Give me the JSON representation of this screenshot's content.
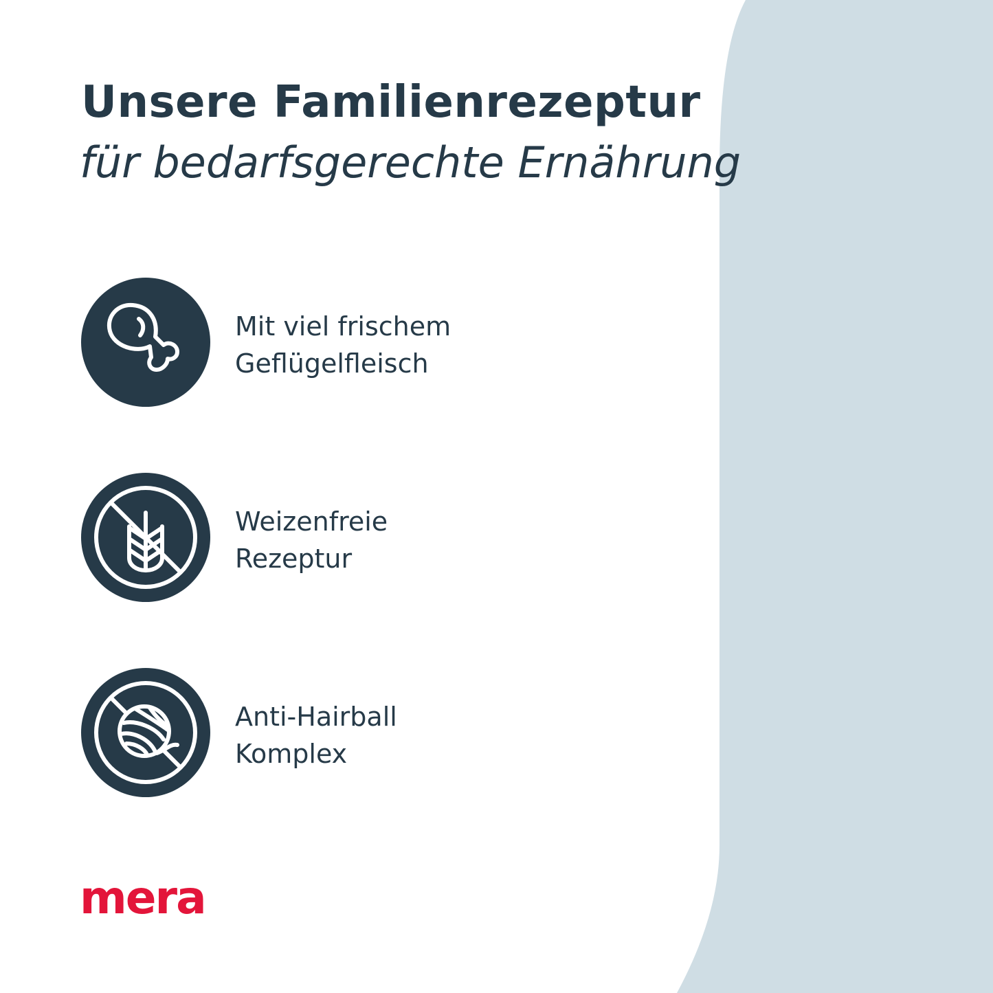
{
  "colors": {
    "background": "#ffffff",
    "panel": "#cfdde4",
    "text": "#263a48",
    "icon_circle": "#263a48",
    "brand": "#e3153a"
  },
  "header": {
    "title": "Unsere Familienrezeptur",
    "subtitle": "für bedarfsgerechte Ernährung"
  },
  "features": [
    {
      "icon": "chicken-leg-icon",
      "line1": "Mit viel frischem",
      "line2": "Geflügelfleisch"
    },
    {
      "icon": "no-wheat-icon",
      "line1": "Weizenfreie",
      "line2": "Rezeptur"
    },
    {
      "icon": "no-hairball-icon",
      "line1": "Anti-Hairball",
      "line2": "Komplex"
    }
  ],
  "logo": {
    "text": "mera"
  }
}
